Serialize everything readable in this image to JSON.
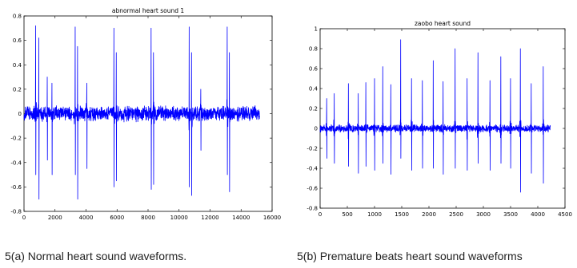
{
  "chart_data": [
    {
      "type": "line",
      "title": "abnormal heart sound 1",
      "xlabel": "",
      "ylabel": "",
      "xlim": [
        0,
        16000
      ],
      "ylim": [
        -0.8,
        0.8
      ],
      "xticks": [
        0,
        2000,
        4000,
        6000,
        8000,
        10000,
        12000,
        14000,
        16000
      ],
      "yticks": [
        -0.8,
        -0.6,
        -0.4,
        -0.2,
        0,
        0.2,
        0.4,
        0.6,
        0.8
      ],
      "xtick_labels": [
        "0",
        "2000",
        "4000",
        "6000",
        "8000",
        "10000",
        "12000",
        "14000",
        "16000"
      ],
      "ytick_labels": [
        "-0.8",
        "-0.6",
        "-0.4",
        "-0.2",
        "0",
        "0.2",
        "0.4",
        "0.6",
        "0.8"
      ],
      "grid": false,
      "line_color": "#0000ff",
      "signal_x_max": 15200,
      "noise_amplitude": 0.07,
      "beats": [
        {
          "x": 750,
          "peak": 0.72,
          "trough": -0.5
        },
        {
          "x": 950,
          "peak": 0.62,
          "trough": -0.7
        },
        {
          "x": 1500,
          "peak": 0.3,
          "trough": -0.38
        },
        {
          "x": 1800,
          "peak": 0.25,
          "trough": -0.5
        },
        {
          "x": 3300,
          "peak": 0.71,
          "trough": -0.5
        },
        {
          "x": 3450,
          "peak": 0.55,
          "trough": -0.7
        },
        {
          "x": 4050,
          "peak": 0.25,
          "trough": -0.45
        },
        {
          "x": 5800,
          "peak": 0.7,
          "trough": -0.6
        },
        {
          "x": 5950,
          "peak": 0.5,
          "trough": -0.55
        },
        {
          "x": 8200,
          "peak": 0.7,
          "trough": -0.62
        },
        {
          "x": 8350,
          "peak": 0.5,
          "trough": -0.58
        },
        {
          "x": 10650,
          "peak": 0.71,
          "trough": -0.6
        },
        {
          "x": 10800,
          "peak": 0.5,
          "trough": -0.67
        },
        {
          "x": 11400,
          "peak": 0.2,
          "trough": -0.3
        },
        {
          "x": 13100,
          "peak": 0.71,
          "trough": -0.5
        },
        {
          "x": 13250,
          "peak": 0.5,
          "trough": -0.64
        }
      ]
    },
    {
      "type": "line",
      "title": "zaobo heart sound",
      "xlabel": "",
      "ylabel": "",
      "xlim": [
        0,
        4500
      ],
      "ylim": [
        -0.8,
        1
      ],
      "xticks": [
        0,
        500,
        1000,
        1500,
        2000,
        2500,
        3000,
        3500,
        4000,
        4500
      ],
      "yticks": [
        -0.8,
        -0.6,
        -0.4,
        -0.2,
        0,
        0.2,
        0.4,
        0.6,
        0.8,
        1
      ],
      "xtick_labels": [
        "0",
        "500",
        "1000",
        "1500",
        "2000",
        "2500",
        "3000",
        "3500",
        "4000",
        "4500"
      ],
      "ytick_labels": [
        "-0.8",
        "-0.6",
        "-0.4",
        "-0.2",
        "0",
        "0.2",
        "0.4",
        "0.6",
        "0.8",
        "1"
      ],
      "grid": false,
      "line_color": "#0000ff",
      "signal_x_max": 4230,
      "noise_amplitude": 0.04,
      "beats": [
        {
          "x": 120,
          "peak": 0.3,
          "trough": -0.3
        },
        {
          "x": 260,
          "peak": 0.35,
          "trough": -0.35
        },
        {
          "x": 520,
          "peak": 0.45,
          "trough": -0.38
        },
        {
          "x": 700,
          "peak": 0.35,
          "trough": -0.45
        },
        {
          "x": 840,
          "peak": 0.46,
          "trough": -0.38
        },
        {
          "x": 1000,
          "peak": 0.5,
          "trough": -0.42
        },
        {
          "x": 1150,
          "peak": 0.62,
          "trough": -0.35
        },
        {
          "x": 1300,
          "peak": 0.44,
          "trough": -0.46
        },
        {
          "x": 1480,
          "peak": 0.89,
          "trough": -0.3
        },
        {
          "x": 1680,
          "peak": 0.5,
          "trough": -0.42
        },
        {
          "x": 1880,
          "peak": 0.48,
          "trough": -0.4
        },
        {
          "x": 2080,
          "peak": 0.68,
          "trough": -0.4
        },
        {
          "x": 2260,
          "peak": 0.47,
          "trough": -0.46
        },
        {
          "x": 2480,
          "peak": 0.8,
          "trough": -0.4
        },
        {
          "x": 2700,
          "peak": 0.5,
          "trough": -0.42
        },
        {
          "x": 2900,
          "peak": 0.76,
          "trough": -0.35
        },
        {
          "x": 3120,
          "peak": 0.48,
          "trough": -0.42
        },
        {
          "x": 3320,
          "peak": 0.72,
          "trough": -0.35
        },
        {
          "x": 3500,
          "peak": 0.5,
          "trough": -0.4
        },
        {
          "x": 3680,
          "peak": 0.8,
          "trough": -0.64
        },
        {
          "x": 3880,
          "peak": 0.45,
          "trough": -0.45
        },
        {
          "x": 4100,
          "peak": 0.62,
          "trough": -0.55
        }
      ]
    }
  ],
  "captions": {
    "a": "5(a) Normal heart sound waveforms.",
    "b": "5(b) Premature beats heart sound waveforms"
  }
}
